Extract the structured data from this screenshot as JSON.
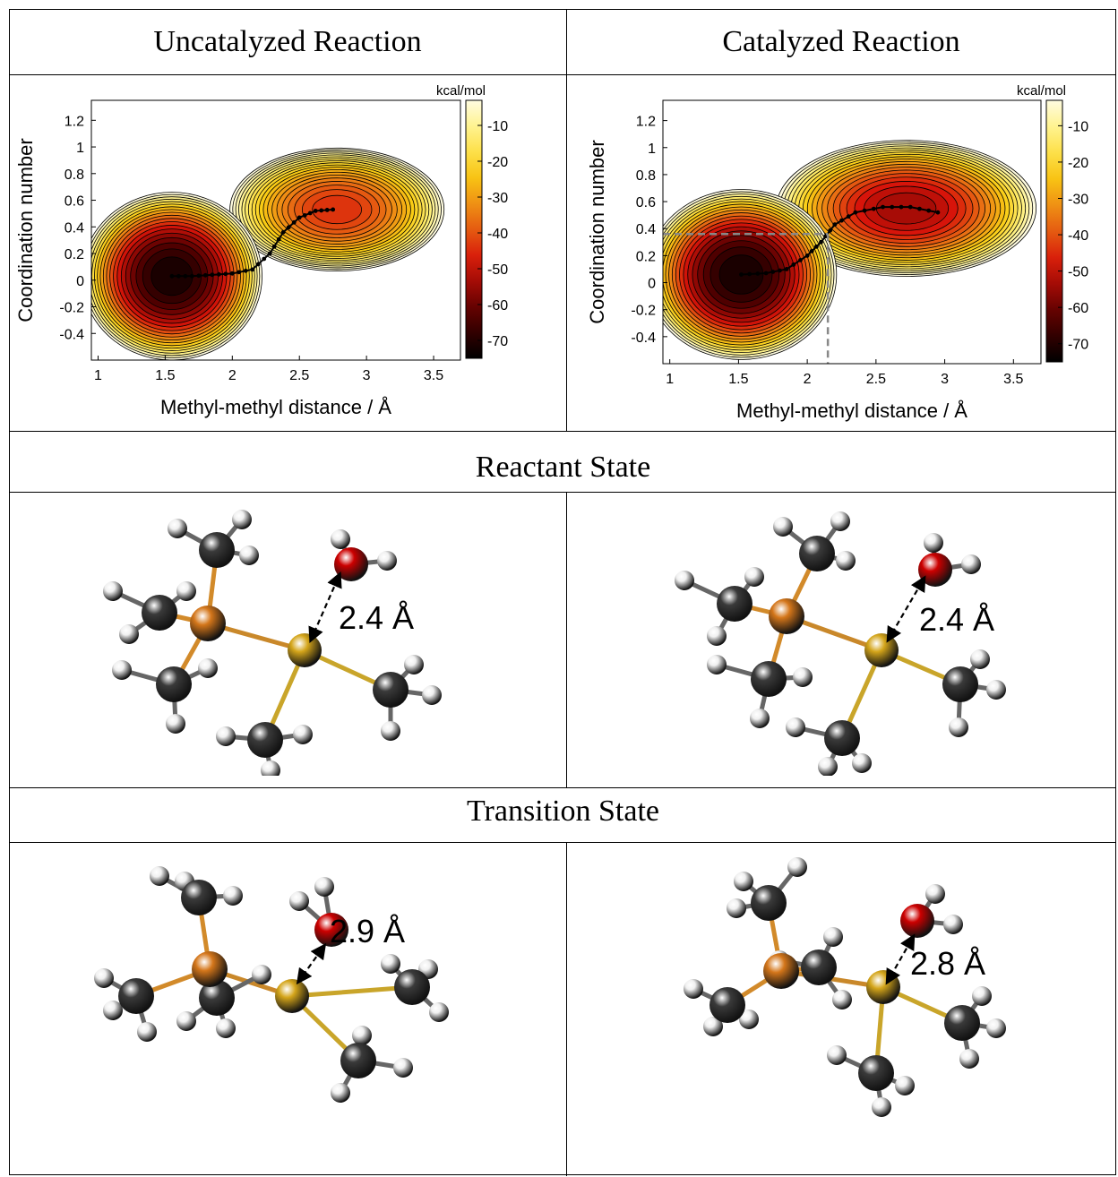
{
  "headers": {
    "uncatalyzed": "Uncatalyzed Reaction",
    "catalyzed": "Catalyzed Reaction",
    "reactant": "Reactant State",
    "transition": "Transition State"
  },
  "colors": {
    "oxygen": "#cc0000",
    "phosphorus": "#d4761a",
    "sulfur": "#d4a51a",
    "carbon": "#3a3a3a",
    "hydrogen": "#f0f0f0"
  },
  "chart_data": [
    {
      "type": "heatmap",
      "xlabel": "Methyl-methyl distance / Å",
      "ylabel": "Coordination number",
      "colorbar_label": "kcal/mol",
      "xlim": [
        0.95,
        3.7
      ],
      "ylim": [
        -0.6,
        1.35
      ],
      "x_ticks": [
        1,
        1.5,
        2,
        2.5,
        3,
        3.5
      ],
      "y_ticks": [
        1.2,
        1,
        0.8,
        0.6,
        0.4,
        0.2,
        0,
        -0.2,
        -0.4
      ],
      "colorbar_range": [
        -75,
        -3
      ],
      "colorbar_ticks": [
        -10,
        -20,
        -30,
        -40,
        -50,
        -60,
        -70
      ],
      "minima": [
        {
          "x": 1.55,
          "y": 0.03,
          "depth": -75,
          "sx": 0.32,
          "sy": 0.3
        },
        {
          "x": 2.78,
          "y": 0.53,
          "depth": -46,
          "sx": 0.38,
          "sy": 0.22
        }
      ],
      "path": [
        [
          1.55,
          0.03
        ],
        [
          1.7,
          0.03
        ],
        [
          1.85,
          0.04
        ],
        [
          2.0,
          0.05
        ],
        [
          2.15,
          0.08
        ],
        [
          2.28,
          0.2
        ],
        [
          2.38,
          0.36
        ],
        [
          2.5,
          0.47
        ],
        [
          2.62,
          0.52
        ],
        [
          2.75,
          0.53
        ]
      ]
    },
    {
      "type": "heatmap",
      "xlabel": "Methyl-methyl distance / Å",
      "ylabel": "Coordination number",
      "colorbar_label": "kcal/mol",
      "xlim": [
        0.95,
        3.7
      ],
      "ylim": [
        -0.6,
        1.35
      ],
      "x_ticks": [
        1,
        1.5,
        2,
        2.5,
        3,
        3.5
      ],
      "y_ticks": [
        1.2,
        1,
        0.8,
        0.6,
        0.4,
        0.2,
        0,
        -0.2,
        -0.4
      ],
      "colorbar_range": [
        -75,
        -3
      ],
      "colorbar_ticks": [
        -10,
        -20,
        -30,
        -40,
        -50,
        -60,
        -70
      ],
      "minima": [
        {
          "x": 1.52,
          "y": 0.06,
          "depth": -75,
          "sx": 0.33,
          "sy": 0.3
        },
        {
          "x": 2.72,
          "y": 0.55,
          "depth": -56,
          "sx": 0.45,
          "sy": 0.24
        }
      ],
      "path": [
        [
          1.52,
          0.06
        ],
        [
          1.7,
          0.07
        ],
        [
          1.85,
          0.1
        ],
        [
          2.0,
          0.2
        ],
        [
          2.1,
          0.3
        ],
        [
          2.2,
          0.43
        ],
        [
          2.35,
          0.52
        ],
        [
          2.55,
          0.56
        ],
        [
          2.75,
          0.56
        ],
        [
          2.95,
          0.52
        ]
      ],
      "ts_marker": {
        "x": 2.15,
        "y": 0.36
      }
    }
  ],
  "distances": {
    "reactant_uncat": "2.4 Å",
    "reactant_cat": "2.4 Å",
    "ts_uncat": "2.9 Å",
    "ts_cat": "2.8 Å"
  }
}
